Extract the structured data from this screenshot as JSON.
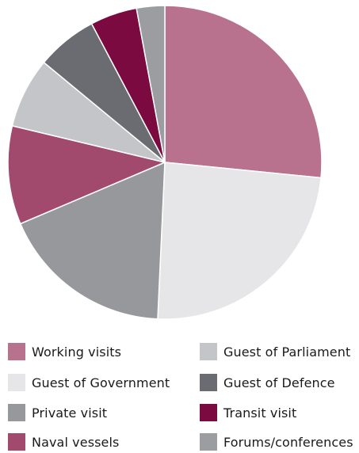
{
  "chart_data": {
    "type": "pie",
    "start_angle": "12 o'clock",
    "direction": "clockwise",
    "title": "",
    "legend_position": "bottom",
    "slices": [
      {
        "label": "Working visits",
        "value": 27.5,
        "color": "#b8728d"
      },
      {
        "label": "Guest of Government",
        "value": 25.0,
        "color": "#e6e6e8"
      },
      {
        "label": "Private visit",
        "value": 18.5,
        "color": "#97989c"
      },
      {
        "label": "Naval vessels",
        "value": 10.5,
        "color": "#a24a6e"
      },
      {
        "label": "Guest of Parliament",
        "value": 7.5,
        "color": "#c4c5c9"
      },
      {
        "label": "Guest of Defence",
        "value": 6.5,
        "color": "#6b6c71"
      },
      {
        "label": "Transit visit",
        "value": 5.0,
        "color": "#7b0a40"
      },
      {
        "label": "Forums/conferences",
        "value": 3.0,
        "color": "#9c9da1"
      }
    ]
  }
}
